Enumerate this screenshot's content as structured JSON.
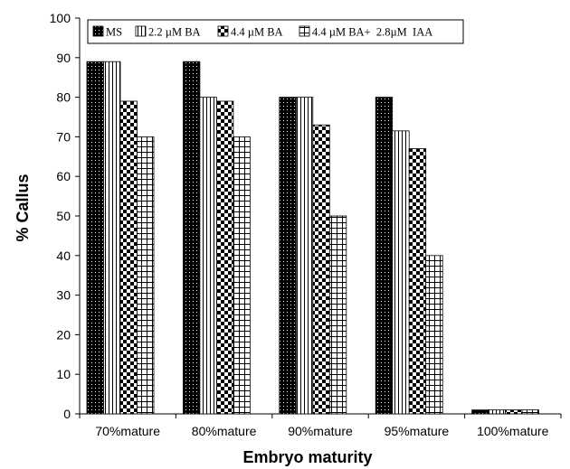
{
  "chart_data": {
    "type": "bar",
    "title": "",
    "xlabel": "Embryo maturity",
    "ylabel": "% Callus",
    "categories": [
      "70%mature",
      "80%mature",
      "90%mature",
      "95%mature",
      "100%mature"
    ],
    "series": [
      {
        "name": "MS",
        "values": [
          89,
          89,
          80,
          80,
          1
        ]
      },
      {
        "name": "2.2 µM BA",
        "values": [
          89,
          80,
          80,
          71.5,
          1
        ]
      },
      {
        "name": "4.4 µM BA",
        "values": [
          79,
          79,
          73,
          67,
          1
        ]
      },
      {
        "name": "4.4 µM BA+  2.8µM  IAA",
        "values": [
          70,
          70,
          50,
          40,
          1
        ]
      }
    ],
    "ylim": [
      0,
      100
    ],
    "yticks": [
      "0",
      "10",
      "20",
      "30",
      "40",
      "50",
      "60",
      "70",
      "80",
      "90",
      "100"
    ],
    "grid": false,
    "legend_position": "top"
  }
}
